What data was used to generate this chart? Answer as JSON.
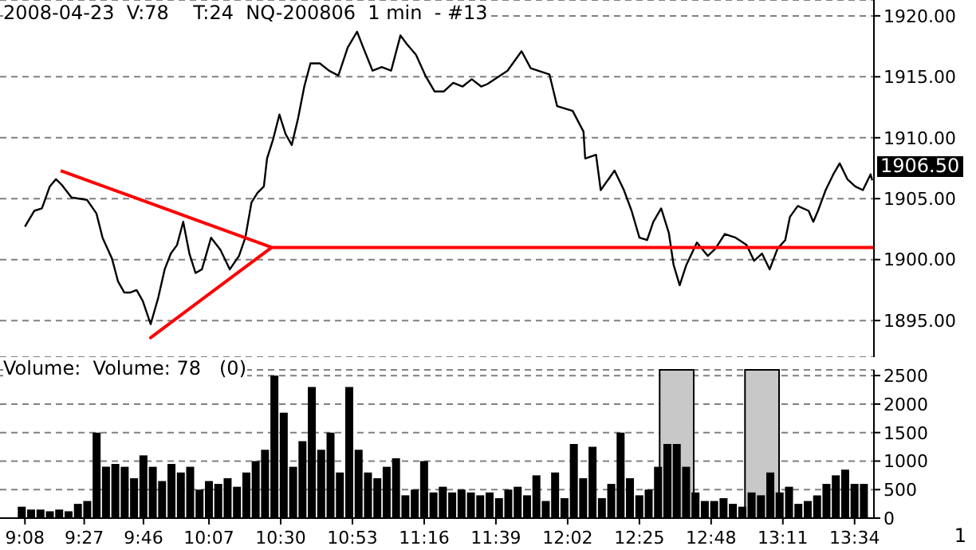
{
  "chart_data": [
    {
      "type": "line",
      "title": "2008-04-23  V:78    T:24  NQ-200806  1 min  - #13",
      "xlim": [
        9.0,
        13.67
      ],
      "ylim": [
        1892,
        1921.3
      ],
      "yticks": [
        {
          "value": 1895,
          "label": "1895.00"
        },
        {
          "value": 1900,
          "label": "1900.00"
        },
        {
          "value": 1905,
          "label": "1905.00"
        },
        {
          "value": 1910,
          "label": "1910.00"
        },
        {
          "value": 1915,
          "label": "1915.00"
        },
        {
          "value": 1920,
          "label": "1920.00"
        }
      ],
      "tick_labels": "y",
      "grid": "y",
      "marker": "none",
      "line_style": "solid",
      "annotations": [
        "1906.50"
      ],
      "series": [
        {
          "color": "#000000",
          "x": [
            9.133,
            9.183,
            9.224,
            9.266,
            9.299,
            9.332,
            9.382,
            9.465,
            9.515,
            9.548,
            9.598,
            9.631,
            9.664,
            9.697,
            9.73,
            9.763,
            9.805,
            9.846,
            9.88,
            9.913,
            9.946,
            9.979,
            10.012,
            10.045,
            10.079,
            10.128,
            10.178,
            10.228,
            10.277,
            10.311,
            10.344,
            10.377,
            10.41,
            10.427,
            10.46,
            10.493,
            10.526,
            10.559,
            10.593,
            10.626,
            10.659,
            10.709,
            10.758,
            10.808,
            10.858,
            10.908,
            10.941,
            10.991,
            11.04,
            11.09,
            11.14,
            11.173,
            11.223,
            11.273,
            11.322,
            11.372,
            11.422,
            11.472,
            11.521,
            11.571,
            11.604,
            11.712,
            11.787,
            11.836,
            11.936,
            11.977,
            12.06,
            12.118,
            12.127,
            12.185,
            12.21,
            12.284,
            12.334,
            12.375,
            12.417,
            12.458,
            12.491,
            12.533,
            12.574,
            12.599,
            12.632,
            12.666,
            12.724,
            12.782,
            12.823,
            12.873,
            12.931,
            12.989,
            13.03,
            13.072,
            13.113,
            13.155,
            13.196,
            13.221,
            13.263,
            13.321,
            13.346,
            13.371,
            13.412,
            13.453,
            13.487,
            13.528,
            13.57,
            13.611,
            13.652,
            13.661
          ],
          "values": [
            1902.7,
            1904.0,
            1904.2,
            1906.0,
            1906.6,
            1906.1,
            1905.1,
            1904.9,
            1903.8,
            1901.8,
            1900.1,
            1898.2,
            1897.3,
            1897.3,
            1897.5,
            1896.6,
            1894.7,
            1896.9,
            1899.2,
            1900.5,
            1901.2,
            1903.1,
            1900.5,
            1898.9,
            1899.2,
            1901.8,
            1900.8,
            1899.2,
            1900.3,
            1901.8,
            1904.7,
            1905.5,
            1906.0,
            1908.3,
            1909.9,
            1911.9,
            1910.3,
            1909.4,
            1911.6,
            1914.2,
            1916.1,
            1916.1,
            1915.5,
            1915.1,
            1917.4,
            1918.7,
            1917.4,
            1915.5,
            1915.8,
            1915.5,
            1918.4,
            1917.7,
            1916.8,
            1915.1,
            1913.8,
            1913.8,
            1914.5,
            1914.2,
            1914.8,
            1914.2,
            1914.4,
            1915.5,
            1917.1,
            1915.7,
            1915.2,
            1912.6,
            1912.2,
            1910.5,
            1908.3,
            1908.6,
            1905.7,
            1907.3,
            1905.7,
            1904.0,
            1901.8,
            1901.6,
            1903.1,
            1904.2,
            1902.2,
            1899.6,
            1897.9,
            1899.5,
            1901.4,
            1900.3,
            1900.9,
            1902.1,
            1901.8,
            1901.2,
            1899.9,
            1900.5,
            1899.2,
            1900.9,
            1901.6,
            1903.5,
            1904.4,
            1904.0,
            1903.1,
            1904.0,
            1905.7,
            1907.0,
            1907.9,
            1906.6,
            1906.0,
            1905.7,
            1907.0,
            1906.5
          ]
        },
        {
          "color": "#ff0000",
          "x": [
            9.324,
            10.452,
            9.805,
            10.452,
            13.67
          ],
          "values": [
            1907.3,
            1901.0,
            1893.6,
            1901.0,
            1901.0
          ]
        }
      ]
    },
    {
      "type": "bar",
      "title": "Volume:  Volume: 78   (0)",
      "xlim": [
        9.0,
        13.67
      ],
      "ylim": [
        0,
        2600
      ],
      "xticks": [
        {
          "value": 9.1333,
          "label": "9:08"
        },
        {
          "value": 9.45,
          "label": "9:27"
        },
        {
          "value": 9.7667,
          "label": "9:46"
        },
        {
          "value": 10.1167,
          "label": "10:07"
        },
        {
          "value": 10.5,
          "label": "10:30"
        },
        {
          "value": 10.8833,
          "label": "10:53"
        },
        {
          "value": 11.2667,
          "label": "11:16"
        },
        {
          "value": 11.65,
          "label": "11:39"
        },
        {
          "value": 12.0333,
          "label": "12:02"
        },
        {
          "value": 12.4167,
          "label": "12:25"
        },
        {
          "value": 12.8,
          "label": "12:48"
        },
        {
          "value": 13.1833,
          "label": "13:11"
        },
        {
          "value": 13.5667,
          "label": "13:34"
        }
      ],
      "yticks": [
        0,
        500,
        1000,
        1500,
        2000,
        2500
      ],
      "grid": "y",
      "annotations": [
        "1"
      ],
      "bands": [
        {
          "axis": "x",
          "from": 12.525,
          "to": 12.707,
          "color": "#c8c8c8"
        },
        {
          "axis": "x",
          "from": 12.981,
          "to": 13.163,
          "color": "#c8c8c8"
        }
      ],
      "x": [
        9.12,
        9.17,
        9.22,
        9.27,
        9.32,
        9.37,
        9.42,
        9.47,
        9.52,
        9.57,
        9.62,
        9.67,
        9.72,
        9.77,
        9.82,
        9.87,
        9.92,
        9.97,
        10.02,
        10.07,
        10.12,
        10.17,
        10.22,
        10.27,
        10.32,
        10.37,
        10.42,
        10.47,
        10.52,
        10.57,
        10.62,
        10.67,
        10.72,
        10.77,
        10.82,
        10.87,
        10.92,
        10.97,
        11.02,
        11.07,
        11.12,
        11.17,
        11.22,
        11.27,
        11.32,
        11.37,
        11.42,
        11.47,
        11.52,
        11.57,
        11.62,
        11.67,
        11.72,
        11.77,
        11.82,
        11.87,
        11.92,
        11.97,
        12.02,
        12.07,
        12.12,
        12.17,
        12.22,
        12.27,
        12.32,
        12.37,
        12.42,
        12.47,
        12.52,
        12.57,
        12.62,
        12.67,
        12.72,
        12.77,
        12.82,
        12.87,
        12.92,
        12.97,
        13.02,
        13.07,
        13.12,
        13.17,
        13.22,
        13.27,
        13.32,
        13.37,
        13.42,
        13.47,
        13.52,
        13.57,
        13.62
      ],
      "series": [
        {
          "color": "#000000",
          "values": [
            200,
            150,
            150,
            120,
            150,
            120,
            250,
            300,
            1500,
            900,
            950,
            900,
            700,
            1100,
            900,
            650,
            950,
            800,
            900,
            500,
            650,
            600,
            700,
            550,
            800,
            1000,
            1200,
            2500,
            1850,
            900,
            1350,
            2300,
            1200,
            1500,
            800,
            2300,
            1200,
            800,
            700,
            900,
            1050,
            400,
            500,
            1000,
            450,
            550,
            450,
            500,
            450,
            400,
            450,
            350,
            500,
            550,
            400,
            750,
            300,
            800,
            350,
            1300,
            700,
            1250,
            350,
            600,
            1500,
            700,
            400,
            500,
            900,
            1300,
            1300,
            900,
            450,
            300,
            300,
            350,
            250,
            200,
            450,
            400,
            800,
            450,
            550,
            250,
            300,
            400,
            600,
            750,
            850,
            600,
            600
          ]
        }
      ]
    }
  ]
}
